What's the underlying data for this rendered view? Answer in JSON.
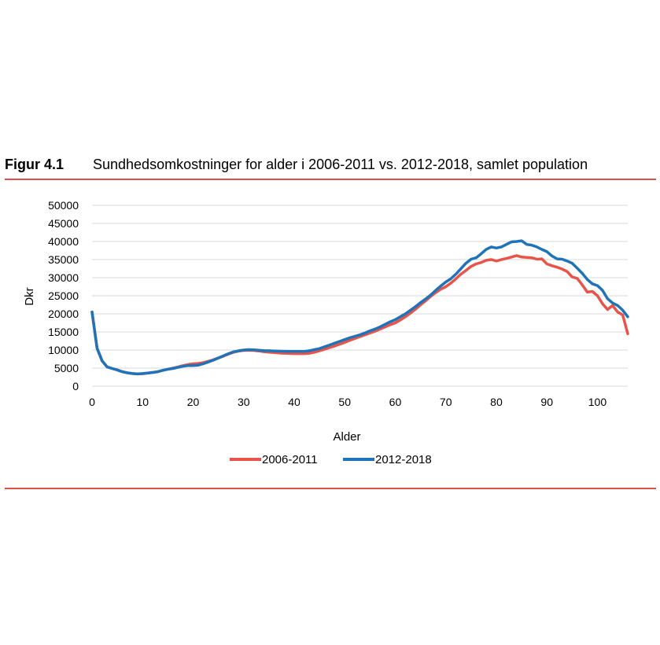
{
  "figure": {
    "label": "Figur 4.1",
    "title": "Sundhedsomkostninger for alder i 2006-2011 vs. 2012-2018, samlet population",
    "rule_color": "#e0504a"
  },
  "chart_data": {
    "type": "line",
    "xlabel": "Alder",
    "ylabel": "Dkr",
    "xlim": [
      0,
      106
    ],
    "ylim": [
      0,
      50000
    ],
    "xticks": [
      0,
      10,
      20,
      30,
      40,
      50,
      60,
      70,
      80,
      90,
      100
    ],
    "yticks": [
      0,
      5000,
      10000,
      15000,
      20000,
      25000,
      30000,
      35000,
      40000,
      45000,
      50000
    ],
    "grid": "horizontal",
    "legend": "bottom-center",
    "series": [
      {
        "name": "2006-2011",
        "color": "#e8544a",
        "points": [
          [
            0,
            20500
          ],
          [
            1,
            10500
          ],
          [
            2,
            7000
          ],
          [
            3,
            5300
          ],
          [
            4,
            4900
          ],
          [
            5,
            4500
          ],
          [
            6,
            4000
          ],
          [
            7,
            3700
          ],
          [
            8,
            3500
          ],
          [
            9,
            3400
          ],
          [
            10,
            3450
          ],
          [
            11,
            3600
          ],
          [
            12,
            3800
          ],
          [
            13,
            4000
          ],
          [
            14,
            4400
          ],
          [
            15,
            4700
          ],
          [
            16,
            5000
          ],
          [
            17,
            5300
          ],
          [
            18,
            5700
          ],
          [
            19,
            6000
          ],
          [
            20,
            6200
          ],
          [
            21,
            6300
          ],
          [
            22,
            6500
          ],
          [
            23,
            6900
          ],
          [
            24,
            7300
          ],
          [
            25,
            7800
          ],
          [
            26,
            8300
          ],
          [
            27,
            8900
          ],
          [
            28,
            9400
          ],
          [
            29,
            9700
          ],
          [
            30,
            9900
          ],
          [
            31,
            9950
          ],
          [
            32,
            9900
          ],
          [
            33,
            9750
          ],
          [
            34,
            9550
          ],
          [
            35,
            9400
          ],
          [
            36,
            9300
          ],
          [
            37,
            9200
          ],
          [
            38,
            9100
          ],
          [
            39,
            9050
          ],
          [
            40,
            9000
          ],
          [
            41,
            9000
          ],
          [
            42,
            9000
          ],
          [
            43,
            9100
          ],
          [
            44,
            9400
          ],
          [
            45,
            9800
          ],
          [
            46,
            10200
          ],
          [
            47,
            10700
          ],
          [
            48,
            11100
          ],
          [
            49,
            11600
          ],
          [
            50,
            12100
          ],
          [
            51,
            12700
          ],
          [
            52,
            13200
          ],
          [
            53,
            13700
          ],
          [
            54,
            14200
          ],
          [
            55,
            14700
          ],
          [
            56,
            15200
          ],
          [
            57,
            15800
          ],
          [
            58,
            16400
          ],
          [
            59,
            17000
          ],
          [
            60,
            17500
          ],
          [
            61,
            18300
          ],
          [
            62,
            19200
          ],
          [
            63,
            20200
          ],
          [
            64,
            21300
          ],
          [
            65,
            22500
          ],
          [
            66,
            23600
          ],
          [
            67,
            24800
          ],
          [
            68,
            25900
          ],
          [
            69,
            26800
          ],
          [
            70,
            27500
          ],
          [
            71,
            28500
          ],
          [
            72,
            29700
          ],
          [
            73,
            31000
          ],
          [
            74,
            32000
          ],
          [
            75,
            33100
          ],
          [
            76,
            33800
          ],
          [
            77,
            34200
          ],
          [
            78,
            34800
          ],
          [
            79,
            35000
          ],
          [
            80,
            34600
          ],
          [
            81,
            35000
          ],
          [
            82,
            35300
          ],
          [
            83,
            35700
          ],
          [
            84,
            36100
          ],
          [
            85,
            35700
          ],
          [
            86,
            35600
          ],
          [
            87,
            35500
          ],
          [
            88,
            35100
          ],
          [
            89,
            35200
          ],
          [
            90,
            33800
          ],
          [
            91,
            33300
          ],
          [
            92,
            32900
          ],
          [
            93,
            32400
          ],
          [
            94,
            31700
          ],
          [
            95,
            30200
          ],
          [
            96,
            29800
          ],
          [
            97,
            28000
          ],
          [
            98,
            26000
          ],
          [
            99,
            26200
          ],
          [
            100,
            25000
          ],
          [
            101,
            22800
          ],
          [
            102,
            21200
          ],
          [
            103,
            22300
          ],
          [
            104,
            20500
          ],
          [
            105,
            19700
          ],
          [
            106,
            14500
          ]
        ]
      },
      {
        "name": "2012-2018",
        "color": "#1f73b8",
        "points": [
          [
            0,
            20500
          ],
          [
            1,
            10500
          ],
          [
            2,
            7000
          ],
          [
            3,
            5300
          ],
          [
            4,
            4900
          ],
          [
            5,
            4500
          ],
          [
            6,
            4000
          ],
          [
            7,
            3700
          ],
          [
            8,
            3500
          ],
          [
            9,
            3400
          ],
          [
            10,
            3500
          ],
          [
            11,
            3650
          ],
          [
            12,
            3800
          ],
          [
            13,
            4000
          ],
          [
            14,
            4400
          ],
          [
            15,
            4700
          ],
          [
            16,
            4900
          ],
          [
            17,
            5200
          ],
          [
            18,
            5500
          ],
          [
            19,
            5700
          ],
          [
            20,
            5700
          ],
          [
            21,
            5800
          ],
          [
            22,
            6200
          ],
          [
            23,
            6700
          ],
          [
            24,
            7200
          ],
          [
            25,
            7800
          ],
          [
            26,
            8400
          ],
          [
            27,
            9000
          ],
          [
            28,
            9500
          ],
          [
            29,
            9800
          ],
          [
            30,
            10000
          ],
          [
            31,
            10100
          ],
          [
            32,
            10050
          ],
          [
            33,
            9950
          ],
          [
            34,
            9850
          ],
          [
            35,
            9800
          ],
          [
            36,
            9750
          ],
          [
            37,
            9700
          ],
          [
            38,
            9650
          ],
          [
            39,
            9600
          ],
          [
            40,
            9600
          ],
          [
            41,
            9600
          ],
          [
            42,
            9600
          ],
          [
            43,
            9800
          ],
          [
            44,
            10100
          ],
          [
            45,
            10400
          ],
          [
            46,
            10900
          ],
          [
            47,
            11400
          ],
          [
            48,
            11900
          ],
          [
            49,
            12400
          ],
          [
            50,
            12900
          ],
          [
            51,
            13400
          ],
          [
            52,
            13800
          ],
          [
            53,
            14200
          ],
          [
            54,
            14700
          ],
          [
            55,
            15300
          ],
          [
            56,
            15800
          ],
          [
            57,
            16400
          ],
          [
            58,
            17100
          ],
          [
            59,
            17800
          ],
          [
            60,
            18400
          ],
          [
            61,
            19200
          ],
          [
            62,
            20000
          ],
          [
            63,
            21000
          ],
          [
            64,
            22000
          ],
          [
            65,
            23100
          ],
          [
            66,
            24100
          ],
          [
            67,
            25200
          ],
          [
            68,
            26500
          ],
          [
            69,
            27700
          ],
          [
            70,
            28800
          ],
          [
            71,
            29700
          ],
          [
            72,
            31000
          ],
          [
            73,
            32500
          ],
          [
            74,
            34000
          ],
          [
            75,
            35100
          ],
          [
            76,
            35500
          ],
          [
            77,
            36600
          ],
          [
            78,
            37800
          ],
          [
            79,
            38500
          ],
          [
            80,
            38200
          ],
          [
            81,
            38500
          ],
          [
            82,
            39200
          ],
          [
            83,
            39900
          ],
          [
            84,
            40000
          ],
          [
            85,
            40200
          ],
          [
            86,
            39200
          ],
          [
            87,
            39000
          ],
          [
            88,
            38500
          ],
          [
            89,
            37800
          ],
          [
            90,
            37200
          ],
          [
            91,
            36000
          ],
          [
            92,
            35200
          ],
          [
            93,
            35100
          ],
          [
            94,
            34600
          ],
          [
            95,
            34000
          ],
          [
            96,
            32600
          ],
          [
            97,
            31200
          ],
          [
            98,
            29500
          ],
          [
            99,
            28300
          ],
          [
            100,
            27800
          ],
          [
            101,
            26500
          ],
          [
            102,
            24200
          ],
          [
            103,
            23000
          ],
          [
            104,
            22300
          ],
          [
            105,
            21000
          ],
          [
            106,
            19200
          ]
        ]
      }
    ]
  }
}
